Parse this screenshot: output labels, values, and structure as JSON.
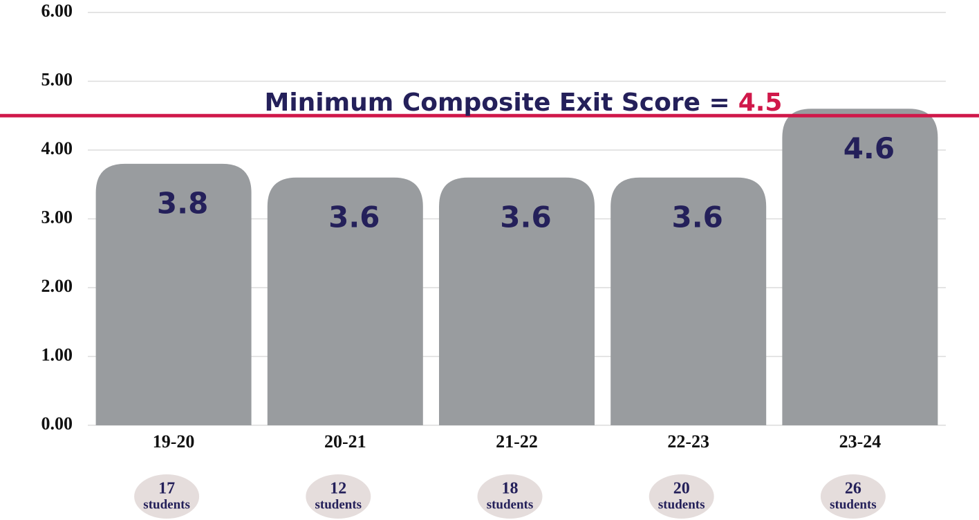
{
  "chart_data": {
    "type": "bar",
    "categories": [
      "19-20",
      "20-21",
      "21-22",
      "22-23",
      "23-24"
    ],
    "values": [
      3.8,
      3.6,
      3.6,
      3.6,
      4.6
    ],
    "color": "#999c9f",
    "ylim": [
      0,
      6
    ],
    "yticks": [
      {
        "value": 0,
        "label": "0.00"
      },
      {
        "value": 1,
        "label": "1.00"
      },
      {
        "value": 2,
        "label": "2.00"
      },
      {
        "value": 3,
        "label": "3.00"
      },
      {
        "value": 4,
        "label": "4.00"
      },
      {
        "value": 5,
        "label": "5.00"
      },
      {
        "value": 6,
        "label": "6.00"
      }
    ],
    "grid": true,
    "threshold": {
      "label": "Minimum Composite Exit Score =",
      "value": 4.5,
      "color": "#d0184a"
    },
    "student_counts": {
      "label": "students",
      "values": [
        17,
        12,
        18,
        20,
        26
      ]
    }
  }
}
